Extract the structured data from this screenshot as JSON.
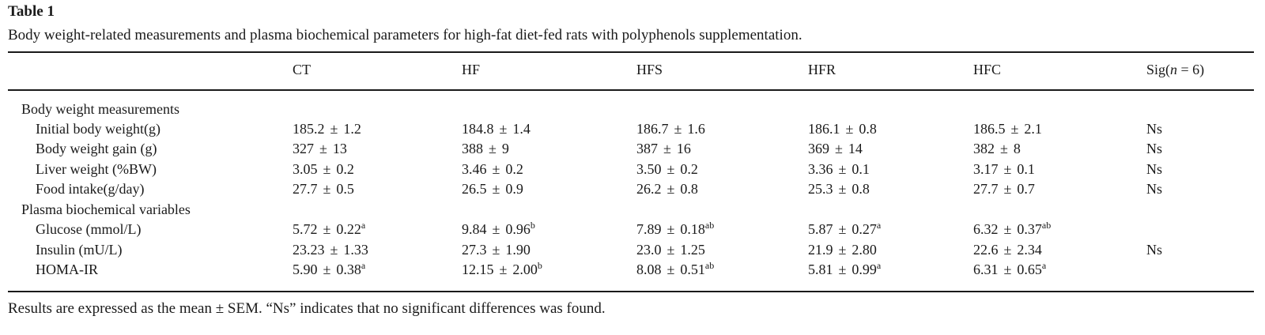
{
  "table_label": "Table 1",
  "caption": "Body weight-related measurements and plasma biochemical parameters for high-fat diet-fed rats with polyphenols supplementation.",
  "header": {
    "columns": [
      "CT",
      "HF",
      "HFS",
      "HFR",
      "HFC"
    ],
    "sig": {
      "prefix": "Sig(",
      "n": "n",
      "suffix": " = 6)"
    }
  },
  "groups": [
    {
      "title": "Body weight measurements",
      "rows": [
        {
          "label": "Initial body weight(g)",
          "values": [
            {
              "mean": "185.2",
              "sem": "1.2",
              "sup": ""
            },
            {
              "mean": "184.8",
              "sem": "1.4",
              "sup": ""
            },
            {
              "mean": "186.7",
              "sem": "1.6",
              "sup": ""
            },
            {
              "mean": "186.1",
              "sem": "0.8",
              "sup": ""
            },
            {
              "mean": "186.5",
              "sem": "2.1",
              "sup": ""
            }
          ],
          "sig": "Ns"
        },
        {
          "label": "Body weight gain (g)",
          "values": [
            {
              "mean": "327",
              "sem": "13",
              "sup": ""
            },
            {
              "mean": "388",
              "sem": "9",
              "sup": ""
            },
            {
              "mean": "387",
              "sem": "16",
              "sup": ""
            },
            {
              "mean": "369",
              "sem": "14",
              "sup": ""
            },
            {
              "mean": "382",
              "sem": "8",
              "sup": ""
            }
          ],
          "sig": "Ns"
        },
        {
          "label": "Liver weight (%BW)",
          "values": [
            {
              "mean": "3.05",
              "sem": "0.2",
              "sup": ""
            },
            {
              "mean": "3.46",
              "sem": "0.2",
              "sup": ""
            },
            {
              "mean": "3.50",
              "sem": "0.2",
              "sup": ""
            },
            {
              "mean": "3.36",
              "sem": "0.1",
              "sup": ""
            },
            {
              "mean": "3.17",
              "sem": "0.1",
              "sup": ""
            }
          ],
          "sig": "Ns"
        },
        {
          "label": "Food intake(g/day)",
          "values": [
            {
              "mean": "27.7",
              "sem": "0.5",
              "sup": ""
            },
            {
              "mean": "26.5",
              "sem": "0.9",
              "sup": ""
            },
            {
              "mean": "26.2",
              "sem": "0.8",
              "sup": ""
            },
            {
              "mean": "25.3",
              "sem": "0.8",
              "sup": ""
            },
            {
              "mean": "27.7",
              "sem": "0.7",
              "sup": ""
            }
          ],
          "sig": "Ns"
        }
      ]
    },
    {
      "title": "Plasma biochemical variables",
      "rows": [
        {
          "label": "Glucose (mmol/L)",
          "values": [
            {
              "mean": "5.72",
              "sem": "0.22",
              "sup": "a"
            },
            {
              "mean": "9.84",
              "sem": "0.96",
              "sup": "b"
            },
            {
              "mean": "7.89",
              "sem": "0.18",
              "sup": "ab"
            },
            {
              "mean": "5.87",
              "sem": "0.27",
              "sup": "a"
            },
            {
              "mean": "6.32",
              "sem": "0.37",
              "sup": "ab"
            }
          ],
          "sig": ""
        },
        {
          "label": "Insulin (mU/L)",
          "values": [
            {
              "mean": "23.23",
              "sem": "1.33",
              "sup": ""
            },
            {
              "mean": "27.3",
              "sem": "1.90",
              "sup": ""
            },
            {
              "mean": "23.0",
              "sem": "1.25",
              "sup": ""
            },
            {
              "mean": "21.9",
              "sem": "2.80",
              "sup": ""
            },
            {
              "mean": "22.6",
              "sem": "2.34",
              "sup": ""
            }
          ],
          "sig": "Ns"
        },
        {
          "label": "HOMA-IR",
          "values": [
            {
              "mean": "5.90",
              "sem": "0.38",
              "sup": "a"
            },
            {
              "mean": "12.15",
              "sem": "2.00",
              "sup": "b"
            },
            {
              "mean": "8.08",
              "sem": "0.51",
              "sup": "ab"
            },
            {
              "mean": "5.81",
              "sem": "0.99",
              "sup": "a"
            },
            {
              "mean": "6.31",
              "sem": "0.65",
              "sup": "a"
            }
          ],
          "sig": ""
        }
      ]
    }
  ],
  "pm_symbol": "±",
  "footnote": "Results are expressed as the mean ± SEM. “Ns” indicates that no significant differences was found."
}
